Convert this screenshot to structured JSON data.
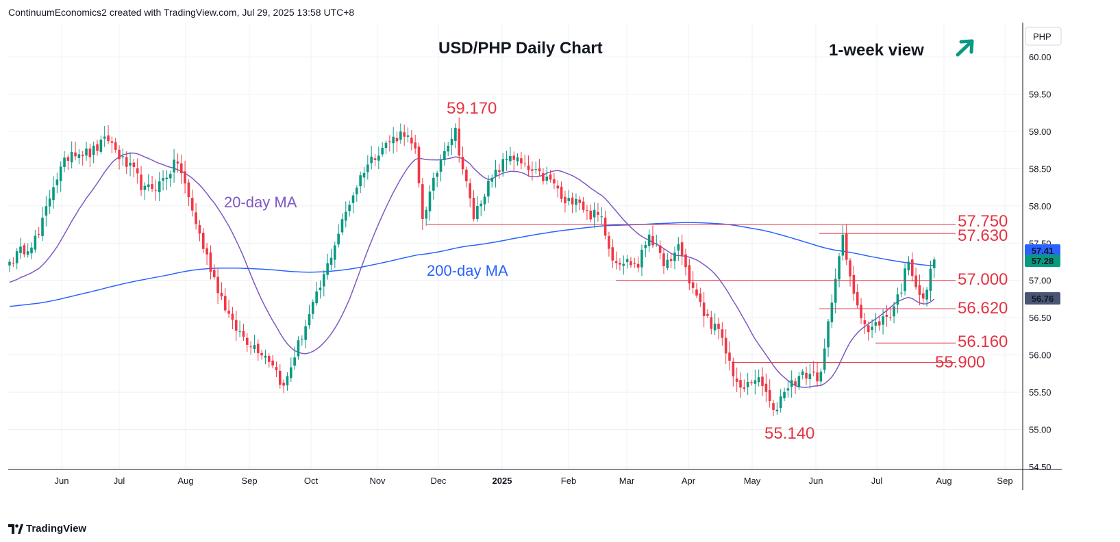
{
  "header": {
    "caption": "ContinuumEconomics2 created with TradingView.com, Jul 29, 2025 13:58 UTC+8"
  },
  "brand": {
    "name": "TradingView"
  },
  "colors": {
    "up": "#089981",
    "down": "#f23645",
    "ma20": "#7e57c2",
    "ma200": "#2962ff",
    "level": "#e53343",
    "arrow": "#089981",
    "grid": "#eef0f3"
  },
  "chart_data": {
    "type": "candlestick",
    "title": "USD/PHP Daily Chart",
    "subtitle": "1-week view",
    "currency_label": "PHP",
    "y_ticks": [
      "60.00",
      "59.50",
      "59.00",
      "58.50",
      "58.00",
      "57.50",
      "57.00",
      "56.50",
      "56.00",
      "55.50",
      "55.00",
      "54.50"
    ],
    "ylim": [
      54.5,
      60.3
    ],
    "x_ticks": [
      "Jun",
      "Jul",
      "Aug",
      "Sep",
      "Oct",
      "Nov",
      "Dec",
      "2025",
      "Feb",
      "Mar",
      "Apr",
      "May",
      "Jun",
      "Jul",
      "Aug",
      "Sep"
    ],
    "price_badges": [
      {
        "value": 57.41,
        "label": "57.41",
        "color": "#2962ff"
      },
      {
        "value": 57.28,
        "label": "57.28",
        "color": "#089981"
      },
      {
        "value": 56.76,
        "label": "56.76",
        "color": "#4a5573"
      }
    ],
    "levels": [
      {
        "value": 57.75,
        "label": "57.750",
        "from": "Dec",
        "to": "Jul-end"
      },
      {
        "value": 57.63,
        "label": "57.630",
        "from": "Jun-mid",
        "to": "Jul-end"
      },
      {
        "value": 57.0,
        "label": "57.000",
        "from": "Feb-end",
        "to": "Jul-end"
      },
      {
        "value": 56.62,
        "label": "56.620",
        "from": "Jun-mid",
        "to": "Jul-end"
      },
      {
        "value": 56.16,
        "label": "56.160",
        "from": "Jul",
        "to": "Jul-end"
      },
      {
        "value": 55.9,
        "label": "55.900",
        "from": "May",
        "to": "Jul-end"
      }
    ],
    "annotations": [
      {
        "label": "59.170",
        "value": 59.17
      },
      {
        "label": "55.140",
        "value": 55.14
      }
    ],
    "series_labels": {
      "ma20": "20-day MA",
      "ma200": "200-day MA"
    },
    "keypoints": [
      {
        "t": 0,
        "v": 57.25
      },
      {
        "t": 8,
        "v": 57.6
      },
      {
        "t": 12,
        "v": 58.3
      },
      {
        "t": 17,
        "v": 58.75
      },
      {
        "t": 22,
        "v": 58.7
      },
      {
        "t": 27,
        "v": 58.9
      },
      {
        "t": 31,
        "v": 58.6
      },
      {
        "t": 34,
        "v": 58.45
      },
      {
        "t": 37,
        "v": 58.2
      },
      {
        "t": 41,
        "v": 58.3
      },
      {
        "t": 46,
        "v": 58.6
      },
      {
        "t": 49,
        "v": 58.1
      },
      {
        "t": 53,
        "v": 57.45
      },
      {
        "t": 57,
        "v": 56.9
      },
      {
        "t": 61,
        "v": 56.4
      },
      {
        "t": 65,
        "v": 56.2
      },
      {
        "t": 69,
        "v": 56.05
      },
      {
        "t": 72,
        "v": 55.9
      },
      {
        "t": 75,
        "v": 55.55
      },
      {
        "t": 78,
        "v": 56.0
      },
      {
        "t": 81,
        "v": 56.4
      },
      {
        "t": 85,
        "v": 56.9
      },
      {
        "t": 89,
        "v": 57.5
      },
      {
        "t": 93,
        "v": 58.05
      },
      {
        "t": 97,
        "v": 58.5
      },
      {
        "t": 101,
        "v": 58.75
      },
      {
        "t": 105,
        "v": 58.9
      },
      {
        "t": 108,
        "v": 59.0
      },
      {
        "t": 111,
        "v": 58.7
      },
      {
        "t": 113,
        "v": 57.85
      },
      {
        "t": 116,
        "v": 58.3
      },
      {
        "t": 119,
        "v": 58.8
      },
      {
        "t": 122,
        "v": 59.0
      },
      {
        "t": 124,
        "v": 58.5
      },
      {
        "t": 127,
        "v": 57.85
      },
      {
        "t": 130,
        "v": 58.2
      },
      {
        "t": 134,
        "v": 58.5
      },
      {
        "t": 137,
        "v": 58.7
      },
      {
        "t": 141,
        "v": 58.5
      },
      {
        "t": 145,
        "v": 58.4
      },
      {
        "t": 149,
        "v": 58.3
      },
      {
        "t": 152,
        "v": 58.0
      },
      {
        "t": 155,
        "v": 58.15
      },
      {
        "t": 158,
        "v": 57.9
      },
      {
        "t": 162,
        "v": 57.85
      },
      {
        "t": 165,
        "v": 57.3
      },
      {
        "t": 169,
        "v": 57.25
      },
      {
        "t": 172,
        "v": 57.2
      },
      {
        "t": 175,
        "v": 57.65
      },
      {
        "t": 178,
        "v": 57.3
      },
      {
        "t": 181,
        "v": 57.2
      },
      {
        "t": 183,
        "v": 57.5
      },
      {
        "t": 186,
        "v": 57.0
      },
      {
        "t": 190,
        "v": 56.55
      },
      {
        "t": 194,
        "v": 56.3
      },
      {
        "t": 197,
        "v": 55.9
      },
      {
        "t": 200,
        "v": 55.5
      },
      {
        "t": 204,
        "v": 55.7
      },
      {
        "t": 207,
        "v": 55.5
      },
      {
        "t": 209,
        "v": 55.2
      },
      {
        "t": 212,
        "v": 55.55
      },
      {
        "t": 216,
        "v": 55.7
      },
      {
        "t": 219,
        "v": 55.75
      },
      {
        "t": 222,
        "v": 55.7
      },
      {
        "t": 224,
        "v": 56.4
      },
      {
        "t": 226,
        "v": 57.1
      },
      {
        "t": 228,
        "v": 57.55
      },
      {
        "t": 230,
        "v": 57.0
      },
      {
        "t": 232,
        "v": 56.7
      },
      {
        "t": 235,
        "v": 56.3
      },
      {
        "t": 238,
        "v": 56.45
      },
      {
        "t": 241,
        "v": 56.55
      },
      {
        "t": 244,
        "v": 56.9
      },
      {
        "t": 246,
        "v": 57.3
      },
      {
        "t": 248,
        "v": 56.95
      },
      {
        "t": 250,
        "v": 56.7
      },
      {
        "t": 252,
        "v": 57.1
      },
      {
        "t": 253,
        "v": 57.28
      }
    ]
  }
}
